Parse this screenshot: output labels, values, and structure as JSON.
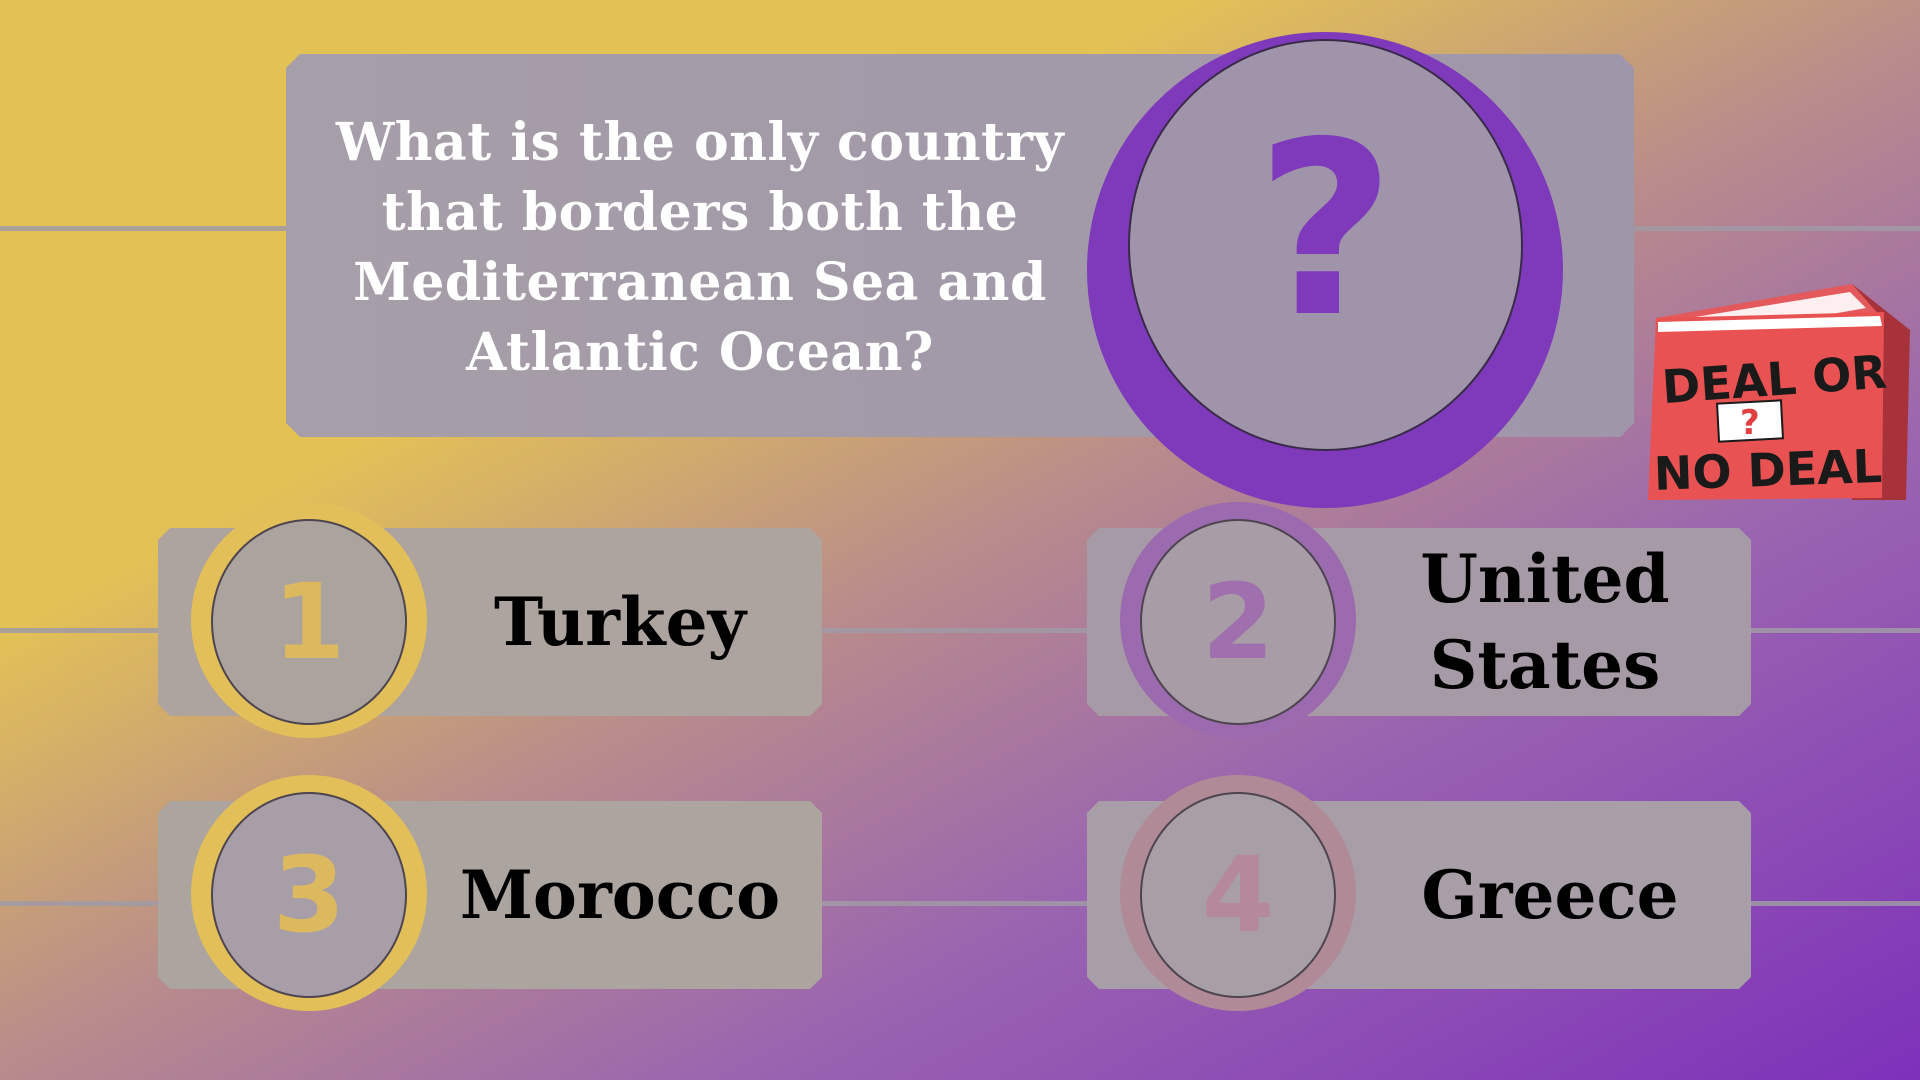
{
  "question": {
    "text": "What is the only country that borders both the Mediterranean Sea and Atlantic Ocean?",
    "icon": "question-mark-icon",
    "mark": "?"
  },
  "answers": [
    {
      "number": "1",
      "label": "Turkey"
    },
    {
      "number": "2",
      "label": "United States"
    },
    {
      "number": "3",
      "label": "Morocco"
    },
    {
      "number": "4",
      "label": "Greece"
    }
  ],
  "logo": {
    "line1": "DEAL OR",
    "mark": "?",
    "line2": "NO DEAL"
  },
  "colors": {
    "accent_purple": "#7e3aba",
    "gold": "#e3c255",
    "logo_red": "#e85050",
    "panel_gray": "#a69aa6"
  }
}
